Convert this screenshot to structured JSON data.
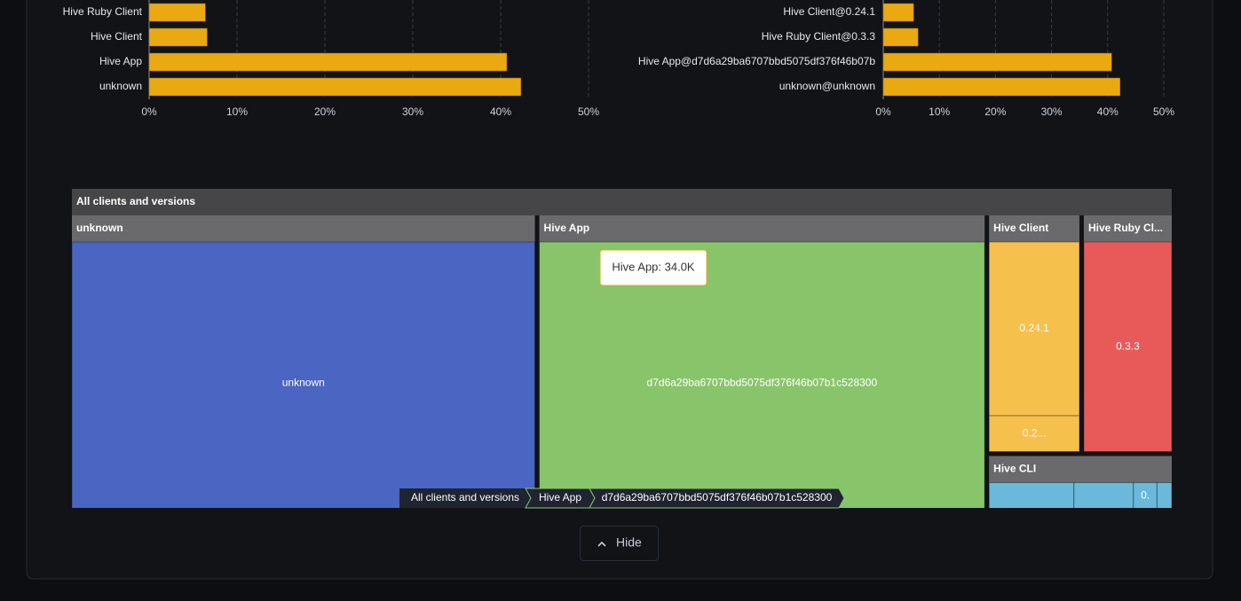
{
  "chart_data": [
    {
      "type": "bar",
      "orientation": "horizontal",
      "categories": [
        "Hive Ruby Client",
        "Hive Client",
        "Hive App",
        "unknown"
      ],
      "values": [
        6.4,
        6.6,
        40.7,
        42.3
      ],
      "color": "#eaa911",
      "xlim": [
        0,
        50
      ],
      "xticks": [
        {
          "value": 0,
          "label": "0%"
        },
        {
          "value": 10,
          "label": "10%"
        },
        {
          "value": 20,
          "label": "20%"
        },
        {
          "value": 30,
          "label": "30%"
        },
        {
          "value": 40,
          "label": "40%"
        },
        {
          "value": 50,
          "label": "50%"
        }
      ],
      "grid": true
    },
    {
      "type": "bar",
      "orientation": "horizontal",
      "categories": [
        "Hive Client@0.24.1",
        "Hive Ruby Client@0.3.3",
        "Hive App@d7d6a29ba6707bbd5075df376f46b07b",
        "unknown@unknown"
      ],
      "values": [
        5.4,
        6.2,
        40.7,
        42.2
      ],
      "color": "#eaa911",
      "xlim": [
        0,
        50
      ],
      "xticks": [
        {
          "value": 0,
          "label": "0%"
        },
        {
          "value": 10,
          "label": "10%"
        },
        {
          "value": 20,
          "label": "20%"
        },
        {
          "value": 30,
          "label": "30%"
        },
        {
          "value": 40,
          "label": "40%"
        },
        {
          "value": 50,
          "label": "50%"
        }
      ],
      "grid": true
    },
    {
      "type": "treemap",
      "title": "All clients and versions",
      "groups": [
        {
          "name": "unknown",
          "color": "#4a65c2",
          "children": [
            {
              "label": "unknown",
              "value": 35350
            }
          ]
        },
        {
          "name": "Hive App",
          "color": "#88c56a",
          "children": [
            {
              "label": "d7d6a29ba6707bbd5075df376f46b07b1c528300",
              "value": 34000
            }
          ]
        },
        {
          "name": "Hive Client",
          "color": "#f6c04d",
          "children": [
            {
              "label": "0.24.1",
              "value": 4560
            },
            {
              "label": "0.2...",
              "value": 940
            }
          ]
        },
        {
          "name": "Hive Ruby Cl...",
          "color": "#e85a5a",
          "children": [
            {
              "label": "0.3.3",
              "value": 5350
            }
          ]
        },
        {
          "name": "Hive CLI",
          "color": "#6ab9da",
          "children": [
            {
              "label": null,
              "value": 1440
            },
            {
              "label": null,
              "value": 1010
            },
            {
              "label": "0.",
              "value": 400
            },
            {
              "label": null,
              "value": 250
            }
          ]
        }
      ],
      "tooltip": "Hive App: 34.0K",
      "breadcrumb": [
        "All clients and versions",
        "Hive App",
        "d7d6a29ba6707bbd5075df376f46b07b1c528300"
      ]
    }
  ],
  "button": {
    "label": "Hide"
  }
}
